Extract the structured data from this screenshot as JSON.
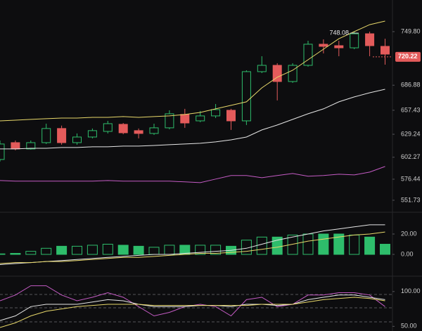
{
  "chart_data": [
    {
      "type": "candlestick",
      "up_color": "#2ebd6b",
      "down_color": "#e35b5b",
      "open": [
        599.6,
        619.4,
        612.0,
        619.4,
        636.0,
        619.4,
        626.0,
        632.6,
        640.9,
        633.5,
        630.2,
        636.8,
        652.5,
        645.0,
        650.8,
        657.4,
        645.0,
        702.8,
        710.2,
        691.2,
        710.2,
        735.0,
        733.3,
        730.8,
        747.3,
        732.5
      ],
      "high": [
        621.9,
        621.9,
        621.9,
        641.7,
        639.4,
        630.2,
        636.0,
        645.0,
        642.5,
        636.0,
        641.7,
        657.4,
        659.1,
        656.6,
        664.8,
        659.1,
        704.4,
        720.9,
        712.7,
        712.7,
        739.1,
        740.7,
        739.1,
        749.8,
        749.8,
        741.5
      ],
      "low": [
        597.2,
        610.4,
        611.2,
        617.8,
        617.0,
        617.0,
        624.4,
        630.2,
        629.3,
        624.4,
        628.5,
        635.1,
        636.8,
        643.4,
        648.3,
        634.3,
        640.1,
        701.1,
        669.0,
        689.6,
        708.6,
        724.2,
        720.9,
        729.2,
        720.9,
        711.0
      ],
      "close": [
        617.8,
        612.0,
        619.4,
        636.0,
        619.4,
        626.0,
        633.5,
        641.7,
        631.0,
        630.2,
        636.8,
        653.3,
        642.5,
        650.8,
        658.2,
        645.0,
        702.8,
        710.2,
        691.2,
        710.2,
        735.0,
        732.5,
        730.8,
        747.3,
        733.3,
        723.4
      ],
      "series": [
        {
          "color": "#e8d86a",
          "values": [
            645.0,
            645.8,
            646.7,
            647.5,
            648.3,
            648.3,
            649.1,
            649.1,
            650.0,
            649.1,
            650.0,
            650.8,
            652.5,
            654.9,
            659.1,
            663.2,
            667.3,
            683.8,
            696.2,
            704.4,
            716.8,
            729.2,
            741.5,
            749.8,
            758.0,
            762.2
          ]
        },
        {
          "color": "#e6e6e6",
          "values": [
            612.0,
            612.0,
            612.8,
            612.8,
            613.7,
            613.7,
            614.5,
            614.5,
            615.3,
            615.3,
            616.1,
            617.0,
            617.8,
            618.6,
            620.3,
            622.7,
            626.0,
            634.3,
            640.1,
            646.7,
            653.3,
            659.1,
            667.3,
            673.1,
            678.0,
            682.1
          ]
        },
        {
          "color": "#c45bc4",
          "values": [
            574.9,
            574.1,
            574.1,
            574.1,
            574.1,
            574.1,
            574.1,
            574.9,
            574.1,
            574.1,
            574.1,
            574.1,
            573.3,
            572.4,
            576.6,
            580.7,
            580.7,
            578.2,
            580.7,
            583.1,
            579.9,
            580.7,
            582.3,
            581.5,
            584.8,
            591.4
          ]
        }
      ],
      "ylim": [
        539.3,
        778.7
      ],
      "yticks": [
        {
          "value": 749.8,
          "label": "749.80"
        },
        686.88,
        657.43,
        629.24,
        602.27,
        576.44,
        551.73
      ],
      "last_price": 720.22,
      "max_label": 748.08
    },
    {
      "type": "bar",
      "color": "#2ebd6b",
      "values": [
        0.5,
        1,
        3,
        6,
        8,
        8,
        9,
        10,
        9,
        8,
        7,
        9,
        9,
        9,
        9,
        8,
        14,
        17,
        17,
        19,
        20,
        20,
        20,
        19,
        17,
        10
      ],
      "series": [
        {
          "color": "#e6e6e6",
          "values": [
            -10,
            -9,
            -8,
            -7,
            -6,
            -5,
            -4,
            -3,
            -2,
            -1,
            0,
            0,
            1,
            2,
            3,
            4,
            6,
            10,
            14,
            17,
            20,
            23,
            25,
            27,
            29,
            29
          ]
        },
        {
          "color": "#e8d86a",
          "values": [
            -9,
            -8,
            -8,
            -7,
            -7,
            -6,
            -5,
            -4,
            -3,
            -3,
            -2,
            -1,
            0,
            1,
            1,
            2,
            3,
            5,
            7,
            10,
            13,
            15,
            17,
            19,
            20,
            22
          ]
        }
      ],
      "ylim": [
        -20.7,
        39.3
      ],
      "yticks": [
        {
          "value": 20,
          "label": "20.00"
        },
        {
          "value": 0,
          "label": "0.00"
        }
      ]
    },
    {
      "type": "line",
      "series": [
        {
          "color": "#c45bc4",
          "values": [
            86.7,
            95,
            108.3,
            108.3,
            95,
            86.7,
            91.7,
            98.3,
            91.7,
            78.3,
            65,
            70,
            78.3,
            81.7,
            78.3,
            65,
            88.3,
            91.7,
            78.3,
            81.7,
            95,
            95,
            98.3,
            98.3,
            95,
            78.3
          ]
        },
        {
          "color": "#e6e6e6",
          "values": [
            58.3,
            65,
            78.3,
            81.7,
            81.7,
            81.7,
            85,
            88.3,
            86.7,
            81.7,
            78.3,
            78.3,
            78.3,
            80,
            80,
            78.3,
            81.7,
            81.7,
            80,
            81.7,
            88.3,
            91.7,
            95,
            95,
            91.7,
            88.3
          ]
        },
        {
          "color": "#e8d86a",
          "values": [
            48.3,
            55,
            65,
            71.7,
            75,
            78.3,
            80,
            81.7,
            81.7,
            81.7,
            80,
            80,
            80,
            80,
            80,
            80,
            80,
            81.7,
            81.7,
            81.7,
            85,
            88.3,
            90,
            91.7,
            90,
            86.7
          ]
        }
      ],
      "ylim": [
        43.3,
        120
      ],
      "yticks": [
        {
          "value": 100,
          "label": "100.00"
        },
        {
          "value": 50,
          "label": "50.00"
        }
      ]
    }
  ]
}
